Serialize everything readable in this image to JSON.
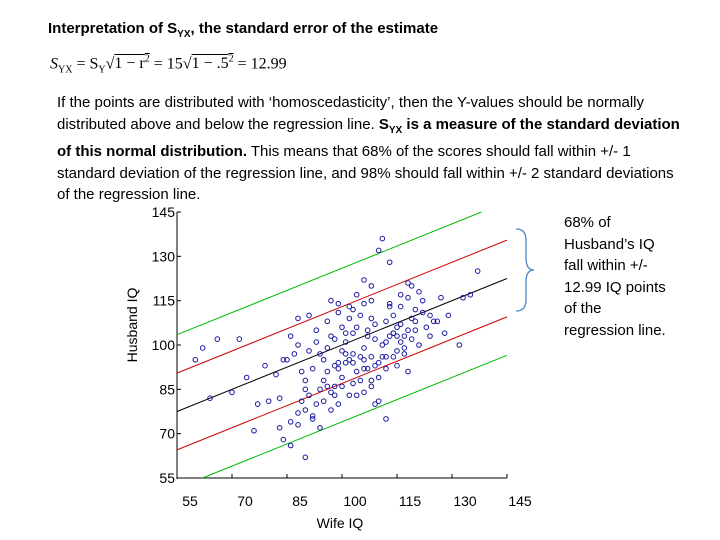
{
  "slide": {
    "title_main": "Interpretation of S",
    "title_sub": "YX",
    "title_rest": ", the standard error of the estimate",
    "formula": {
      "lhs_s": "S",
      "lhs_sub": "YX",
      "eq1": " = S",
      "sy_sub": "Y",
      "root_a": "1 − r",
      "root_a_sup": "2",
      "eq2": " = 15",
      "root_b": "1 − .5",
      "root_b_sup": "2",
      "result": " = 12.99"
    },
    "paragraph": {
      "part1": "If the points are distributed with ‘homoscedasticity’, then the Y-values should be normally distributed above and below the regression line. ",
      "bold_s": "S",
      "bold_sub": "YX",
      "bold_rest": " is a measure of the standard deviation of this normal distribution.",
      "part2": " This means that 68% of the scores should fall within +/- 1 standard deviation of the regression line, and 98% should fall within +/- 2 standard deviations of the regression line."
    },
    "sidenote": "68% of Husband’s IQ fall within +/- 12.99 IQ points of the regression line."
  },
  "chart_data": {
    "type": "scatter",
    "xlabel": "Wife IQ",
    "ylabel": "Husband IQ",
    "xlim": [
      55,
      145
    ],
    "ylim": [
      55,
      145
    ],
    "x_ticks": [
      55,
      70,
      85,
      100,
      115,
      130,
      145
    ],
    "y_ticks": [
      55,
      70,
      85,
      100,
      115,
      130,
      145
    ],
    "regression": {
      "slope": 0.5,
      "intercept": 50,
      "se": 12.99
    },
    "lines": [
      {
        "offset_sd": 0,
        "color": "#000000"
      },
      {
        "offset_sd": 1,
        "color": "#cc0000"
      },
      {
        "offset_sd": -1,
        "color": "#cc0000"
      },
      {
        "offset_sd": 2,
        "color": "#00bb00"
      },
      {
        "offset_sd": -2,
        "color": "#00bb00"
      }
    ],
    "point_color": "#1a1aa0",
    "points": [
      [
        64,
        82
      ],
      [
        70,
        84
      ],
      [
        72,
        102
      ],
      [
        74,
        89
      ],
      [
        77,
        80
      ],
      [
        79,
        93
      ],
      [
        82,
        90
      ],
      [
        83,
        72
      ],
      [
        84,
        68
      ],
      [
        86,
        66
      ],
      [
        87,
        97
      ],
      [
        88,
        73
      ],
      [
        90,
        62
      ],
      [
        91,
        83
      ],
      [
        92,
        75
      ],
      [
        95,
        81
      ],
      [
        97,
        84
      ],
      [
        98,
        93
      ],
      [
        99,
        92
      ],
      [
        100,
        86
      ],
      [
        101,
        94
      ],
      [
        102,
        109
      ],
      [
        103,
        97
      ],
      [
        105,
        110
      ],
      [
        106,
        92
      ],
      [
        107,
        103
      ],
      [
        108,
        96
      ],
      [
        109,
        107
      ],
      [
        110,
        81
      ],
      [
        112,
        75
      ],
      [
        113,
        114
      ],
      [
        114,
        104
      ],
      [
        116,
        107
      ],
      [
        117,
        103
      ],
      [
        118,
        91
      ],
      [
        119,
        120
      ],
      [
        120,
        108
      ],
      [
        121,
        118
      ],
      [
        123,
        106
      ],
      [
        125,
        108
      ],
      [
        127,
        116
      ],
      [
        129,
        110
      ],
      [
        132,
        100
      ],
      [
        133,
        116
      ],
      [
        135,
        117
      ],
      [
        137,
        125
      ],
      [
        88,
        109
      ],
      [
        91,
        110
      ],
      [
        93,
        101
      ],
      [
        94,
        97
      ],
      [
        96,
        99
      ],
      [
        97,
        103
      ],
      [
        100,
        106
      ],
      [
        101,
        101
      ],
      [
        103,
        104
      ],
      [
        104,
        91
      ],
      [
        106,
        99
      ],
      [
        107,
        105
      ],
      [
        108,
        115
      ],
      [
        109,
        93
      ],
      [
        111,
        100
      ],
      [
        112,
        96
      ],
      [
        113,
        103
      ],
      [
        115,
        98
      ],
      [
        116,
        113
      ],
      [
        117,
        99
      ],
      [
        118,
        116
      ],
      [
        119,
        109
      ],
      [
        120,
        105
      ],
      [
        121,
        100
      ],
      [
        122,
        111
      ],
      [
        124,
        103
      ],
      [
        126,
        108
      ],
      [
        128,
        104
      ],
      [
        90,
        85
      ],
      [
        92,
        92
      ],
      [
        95,
        95
      ],
      [
        98,
        102
      ],
      [
        99,
        114
      ],
      [
        102,
        113
      ],
      [
        104,
        117
      ],
      [
        106,
        122
      ],
      [
        108,
        120
      ],
      [
        110,
        132
      ],
      [
        111,
        136
      ],
      [
        113,
        128
      ],
      [
        114,
        110
      ],
      [
        115,
        106
      ],
      [
        116,
        117
      ],
      [
        118,
        121
      ],
      [
        92,
        76
      ],
      [
        93,
        80
      ],
      [
        95,
        88
      ],
      [
        96,
        91
      ],
      [
        98,
        86
      ],
      [
        99,
        80
      ],
      [
        100,
        89
      ],
      [
        102,
        95
      ],
      [
        103,
        87
      ],
      [
        105,
        88
      ],
      [
        107,
        92
      ],
      [
        108,
        86
      ],
      [
        110,
        89
      ],
      [
        112,
        92
      ],
      [
        114,
        96
      ],
      [
        115,
        93
      ],
      [
        117,
        97
      ],
      [
        119,
        102
      ],
      [
        85,
        95
      ],
      [
        86,
        103
      ],
      [
        88,
        100
      ],
      [
        89,
        91
      ],
      [
        91,
        98
      ],
      [
        93,
        105
      ],
      [
        96,
        108
      ],
      [
        97,
        115
      ],
      [
        99,
        111
      ],
      [
        101,
        104
      ],
      [
        103,
        112
      ],
      [
        104,
        106
      ],
      [
        106,
        114
      ],
      [
        108,
        109
      ],
      [
        109,
        102
      ],
      [
        111,
        96
      ],
      [
        112,
        108
      ],
      [
        113,
        113
      ],
      [
        114,
        104
      ],
      [
        116,
        101
      ],
      [
        84,
        95
      ],
      [
        89,
        81
      ],
      [
        90,
        88
      ],
      [
        94,
        85
      ],
      [
        97,
        78
      ],
      [
        99,
        94
      ],
      [
        100,
        98
      ],
      [
        102,
        83
      ],
      [
        105,
        96
      ],
      [
        106,
        84
      ],
      [
        108,
        88
      ],
      [
        110,
        94
      ],
      [
        112,
        101
      ],
      [
        115,
        103
      ],
      [
        118,
        105
      ],
      [
        120,
        112
      ],
      [
        122,
        115
      ],
      [
        124,
        110
      ],
      [
        60,
        95
      ],
      [
        62,
        99
      ],
      [
        66,
        102
      ],
      [
        76,
        71
      ],
      [
        80,
        81
      ],
      [
        83,
        82
      ],
      [
        86,
        74
      ],
      [
        88,
        77
      ],
      [
        90,
        78
      ],
      [
        94,
        72
      ],
      [
        96,
        86
      ],
      [
        98,
        83
      ],
      [
        101,
        97
      ],
      [
        103,
        94
      ],
      [
        104,
        83
      ],
      [
        106,
        95
      ],
      [
        109,
        80
      ]
    ]
  }
}
